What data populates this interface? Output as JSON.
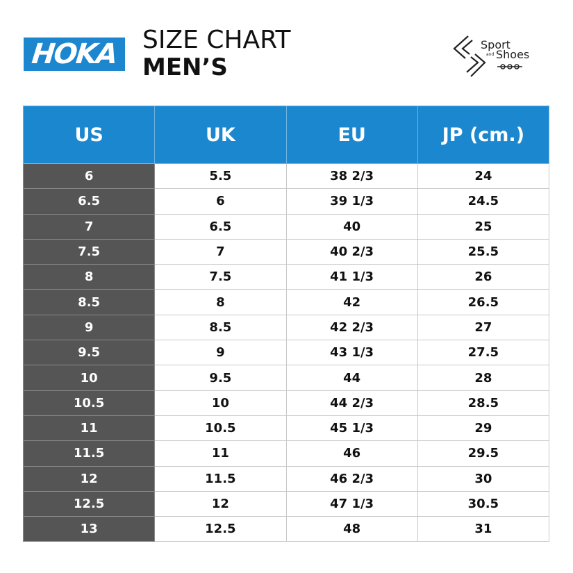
{
  "brand": {
    "hoka_logo_text": "HOKA"
  },
  "header": {
    "title_line1": "SIZE CHART",
    "title_line2": "MEN’S"
  },
  "partner_logo": {
    "line1": "Sport",
    "small": "and",
    "line2": "Shoes"
  },
  "table": {
    "columns": [
      "US",
      "UK",
      "EU",
      "JP (cm.)"
    ],
    "rows": [
      [
        "6",
        "5.5",
        "38 2/3",
        "24"
      ],
      [
        "6.5",
        "6",
        "39 1/3",
        "24.5"
      ],
      [
        "7",
        "6.5",
        "40",
        "25"
      ],
      [
        "7.5",
        "7",
        "40 2/3",
        "25.5"
      ],
      [
        "8",
        "7.5",
        "41 1/3",
        "26"
      ],
      [
        "8.5",
        "8",
        "42",
        "26.5"
      ],
      [
        "9",
        "8.5",
        "42 2/3",
        "27"
      ],
      [
        "9.5",
        "9",
        "43 1/3",
        "27.5"
      ],
      [
        "10",
        "9.5",
        "44",
        "28"
      ],
      [
        "10.5",
        "10",
        "44 2/3",
        "28.5"
      ],
      [
        "11",
        "10.5",
        "45 1/3",
        "29"
      ],
      [
        "11.5",
        "11",
        "46",
        "29.5"
      ],
      [
        "12",
        "11.5",
        "46 2/3",
        "30"
      ],
      [
        "12.5",
        "12",
        "47 1/3",
        "30.5"
      ],
      [
        "13",
        "12.5",
        "48",
        "31"
      ]
    ]
  },
  "colors": {
    "header_blue": "#1b87cf",
    "us_column": "#555555",
    "hoka_blue": "#1c86cf"
  }
}
